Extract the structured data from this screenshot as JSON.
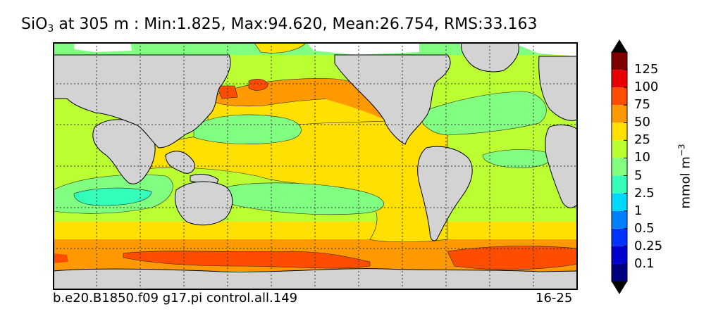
{
  "title": {
    "variable_base": "SiO",
    "variable_sub": "3",
    "text_after": " at 305 m : Min:1.825, Max:94.620, Mean:26.754, RMS:33.163"
  },
  "footer": {
    "run_name": "b.e20.B1850.f09 g17.pi control.all.149",
    "years": "16-25"
  },
  "colorbar": {
    "units_base": "mmol m",
    "units_exp": "−3",
    "labels": [
      "0.1",
      "0.25",
      "0.5",
      "1",
      "2.5",
      "5",
      "10",
      "25",
      "50",
      "75",
      "100",
      "125"
    ],
    "colors": [
      "#00007f",
      "#0000cc",
      "#0033ff",
      "#0080ff",
      "#00d9ff",
      "#33ffbb",
      "#80ff80",
      "#bbff33",
      "#ffe000",
      "#ff9900",
      "#ff4d00",
      "#e60000",
      "#7f0000"
    ],
    "extend": "both"
  },
  "map": {
    "land_color": "#d3d3d3",
    "missing_color": "#ffffff",
    "grid": true
  }
}
